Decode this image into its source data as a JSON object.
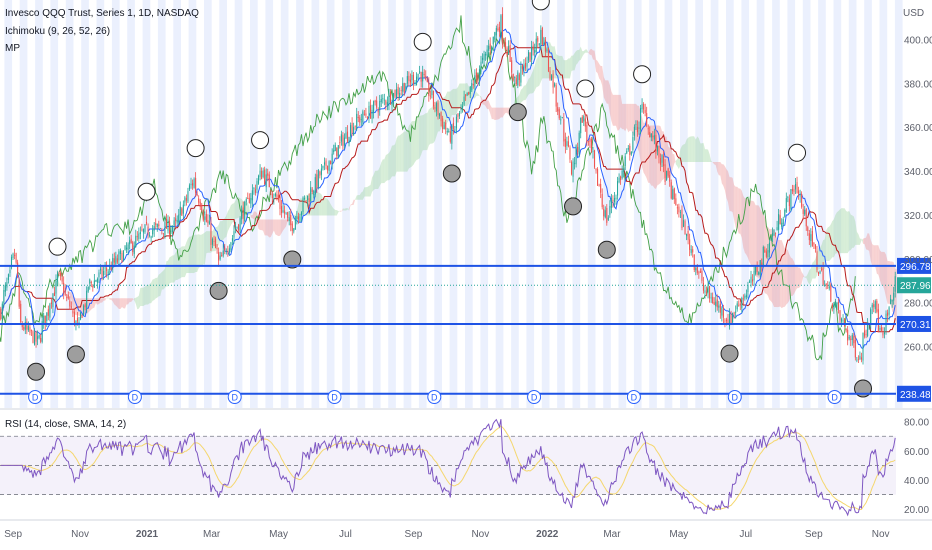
{
  "header": {
    "symbol_line": "Invesco QQQ Trust, Series 1, 1D, NASDAQ",
    "indicator_ichimoku": "Ichimoku (9, 26, 52, 26)",
    "indicator_mp": "MP",
    "rsi_label": "RSI (14, close, SMA, 14, 2)",
    "currency": "USD"
  },
  "colors": {
    "candle_up": "#26a69a",
    "candle_down": "#ef5350",
    "conversion": "#2962ff",
    "base": "#b71c1c",
    "lagging": "#43a047",
    "cloud_bull": "#a5d6a7",
    "cloud_bear": "#ef9a9a",
    "hline": "#1e53e5",
    "band": "#dbe4fb",
    "rsi": "#7e57c2",
    "rsi_ma": "#f5d76e"
  },
  "chart_data": [
    {
      "type": "candlestick",
      "title": "Invesco QQQ Trust, Series 1, 1D, NASDAQ",
      "ylabel": "USD",
      "ylim": [
        232,
        418
      ],
      "yticks": [
        260,
        280,
        300,
        320,
        340,
        360,
        380,
        400
      ],
      "x_tick_labels": [
        "Sep",
        "Nov",
        "2021",
        "Mar",
        "May",
        "Jul",
        "Sep",
        "Nov",
        "2022",
        "Mar",
        "May",
        "Jul",
        "Sep",
        "Nov"
      ],
      "x_range": [
        "2020-08-20",
        "2022-11-15"
      ],
      "price_keypoints": [
        [
          "2020-08-20",
          276
        ],
        [
          "2020-09-02",
          302
        ],
        [
          "2020-09-08",
          270
        ],
        [
          "2020-09-23",
          262
        ],
        [
          "2020-10-12",
          292
        ],
        [
          "2020-10-30",
          268
        ],
        [
          "2020-11-09",
          288
        ],
        [
          "2020-11-30",
          297
        ],
        [
          "2020-12-31",
          313
        ],
        [
          "2021-01-27",
          315
        ],
        [
          "2021-02-12",
          336
        ],
        [
          "2021-03-08",
          298
        ],
        [
          "2021-04-16",
          340
        ],
        [
          "2021-05-12",
          315
        ],
        [
          "2021-06-10",
          340
        ],
        [
          "2021-07-09",
          362
        ],
        [
          "2021-08-16",
          376
        ],
        [
          "2021-09-07",
          385
        ],
        [
          "2021-10-04",
          355
        ],
        [
          "2021-11-19",
          408
        ],
        [
          "2021-12-03",
          380
        ],
        [
          "2021-12-27",
          403
        ],
        [
          "2022-01-24",
          340
        ],
        [
          "2022-02-02",
          365
        ],
        [
          "2022-02-24",
          318
        ],
        [
          "2022-03-29",
          368
        ],
        [
          "2022-05-02",
          320
        ],
        [
          "2022-05-24",
          286
        ],
        [
          "2022-06-16",
          272
        ],
        [
          "2022-07-07",
          290
        ],
        [
          "2022-08-16",
          334
        ],
        [
          "2022-09-06",
          295
        ],
        [
          "2022-09-30",
          268
        ],
        [
          "2022-10-13",
          255
        ],
        [
          "2022-10-25",
          282
        ],
        [
          "2022-11-03",
          263
        ],
        [
          "2022-11-15",
          290
        ]
      ],
      "horizontal_lines": [
        {
          "value": 296.78,
          "label": "296.78"
        },
        {
          "value": 270.31,
          "label": "270.31"
        },
        {
          "value": 238.48,
          "label": "238.48"
        }
      ],
      "last_price": {
        "value": 287.96,
        "label": "287.96"
      },
      "dividend_marker": "D",
      "dividend_dates": [
        "2020-09-21",
        "2020-12-21",
        "2021-03-22",
        "2021-06-21",
        "2021-09-20",
        "2021-12-20",
        "2022-03-21",
        "2022-06-21",
        "2022-09-20"
      ]
    },
    {
      "type": "line",
      "title": "RSI (14, close, SMA, 14, 2)",
      "ylim": [
        16,
        88
      ],
      "yticks": [
        20.0,
        40.0,
        60.0,
        80.0
      ],
      "ytick_labels": [
        "20.00",
        "40.00",
        "60.00",
        "80.00"
      ],
      "bands": [
        30,
        70
      ],
      "midline": 50
    }
  ]
}
